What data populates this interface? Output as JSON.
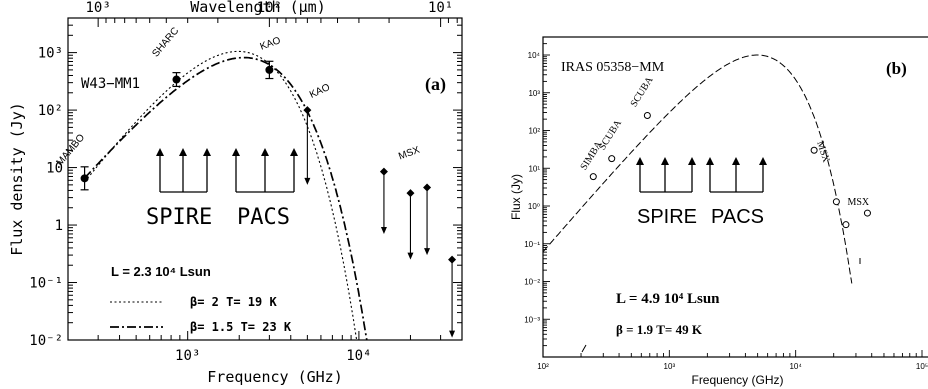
{
  "chart_data": [
    {
      "type": "scatter",
      "panel_label": "(a)",
      "source_name": "W43−MM1",
      "title": "",
      "xlabel": "Frequency (GHz)",
      "ylabel": "Flux density (Jy)",
      "top_xlabel": "Wavelength (μm)",
      "xscale": "log",
      "yscale": "log",
      "xlim": [
        200,
        40000
      ],
      "ylim": [
        0.01,
        4000
      ],
      "xticks": [
        {
          "v": 1000,
          "label": "10³"
        },
        {
          "v": 10000,
          "label": "10⁴"
        }
      ],
      "yticks": [
        {
          "v": 0.01,
          "label": "10⁻²"
        },
        {
          "v": 0.1,
          "label": "10⁻¹"
        },
        {
          "v": 1,
          "label": "1"
        },
        {
          "v": 10,
          "label": "10"
        },
        {
          "v": 100,
          "label": "10²"
        },
        {
          "v": 1000,
          "label": "10³"
        }
      ],
      "top_ticks": [
        {
          "v": 1000,
          "label": "10³"
        },
        {
          "v": 100,
          "label": "10²"
        },
        {
          "v": 10,
          "label": "10¹"
        }
      ],
      "points": [
        {
          "name": "MAMBO",
          "x": 250,
          "y": 6.5,
          "err": 0.2
        },
        {
          "name": "SHARC",
          "x": 860,
          "y": 340,
          "err": 0.12
        },
        {
          "name": "KAO",
          "x": 3000,
          "y": 500,
          "err": 0.15
        }
      ],
      "upper_limits": [
        {
          "name": "KAO",
          "x": 5000,
          "y": 100,
          "y_to": 5
        },
        {
          "name": "MSX",
          "x": 14000,
          "y": 8.5,
          "y_to": 0.7
        },
        {
          "name": "",
          "x": 20000,
          "y": 3.6,
          "y_to": 0.25
        },
        {
          "name": "",
          "x": 25000,
          "y": 4.5,
          "y_to": 0.3
        },
        {
          "name": "",
          "x": 35000,
          "y": 0.25,
          "y_to": 0.011
        }
      ],
      "series": [
        {
          "name": "β= 2  T= 19 K",
          "style": "dotted",
          "beta": 2,
          "T": 19,
          "peak_flux": 1050
        },
        {
          "name": "β= 1.5  T= 23 K",
          "style": "dashdot",
          "beta": 1.5,
          "T": 23,
          "peak_flux": 820
        }
      ],
      "luminosity": "L = 2.3  10⁴ Lsun",
      "instruments": [
        {
          "name": "SPIRE",
          "arrows": 3
        },
        {
          "name": "PACS",
          "arrows": 3
        }
      ]
    },
    {
      "type": "scatter",
      "panel_label": "(b)",
      "source_name": "IRAS 05358−MM",
      "title": "",
      "xlabel": "Frequency (GHz)",
      "ylabel": "Flux (Jy)",
      "xscale": "log",
      "yscale": "log",
      "xlim": [
        100,
        100000
      ],
      "ylim": [
        0.0001,
        30000
      ],
      "xticks": [
        {
          "v": 100,
          "label": "10²"
        },
        {
          "v": 1000,
          "label": "10³"
        },
        {
          "v": 10000,
          "label": "10⁴"
        },
        {
          "v": 100000,
          "label": "10⁵"
        }
      ],
      "yticks": [
        {
          "v": 0.001,
          "label": "10⁻³"
        },
        {
          "v": 0.01,
          "label": "10⁻²"
        },
        {
          "v": 0.1,
          "label": "10⁻¹"
        },
        {
          "v": 1,
          "label": "10⁰"
        },
        {
          "v": 10,
          "label": "10¹"
        },
        {
          "v": 100,
          "label": "10²"
        },
        {
          "v": 1000,
          "label": "10³"
        },
        {
          "v": 10000,
          "label": "10⁴"
        }
      ],
      "points": [
        {
          "name": "SIMBA",
          "x": 250,
          "y": 6
        },
        {
          "name": "SCUBA",
          "x": 350,
          "y": 18
        },
        {
          "name": "SCUBA",
          "x": 670,
          "y": 250
        },
        {
          "name": "MSX",
          "x": 14000,
          "y": 30
        },
        {
          "name": "",
          "x": 21000,
          "y": 1.3
        },
        {
          "name": "",
          "x": 25000,
          "y": 0.32
        },
        {
          "name": "MSX",
          "x": 37000,
          "y": 0.65
        }
      ],
      "series": [
        {
          "name": "β = 1.9  T= 49 K",
          "style": "dashed",
          "beta": 1.9,
          "T": 49,
          "peak_flux": 10000
        }
      ],
      "luminosity": "L = 4.9  10⁴ Lsun",
      "instruments": [
        {
          "name": "SPIRE",
          "arrows": 3
        },
        {
          "name": "PACS",
          "arrows": 3
        }
      ]
    }
  ]
}
